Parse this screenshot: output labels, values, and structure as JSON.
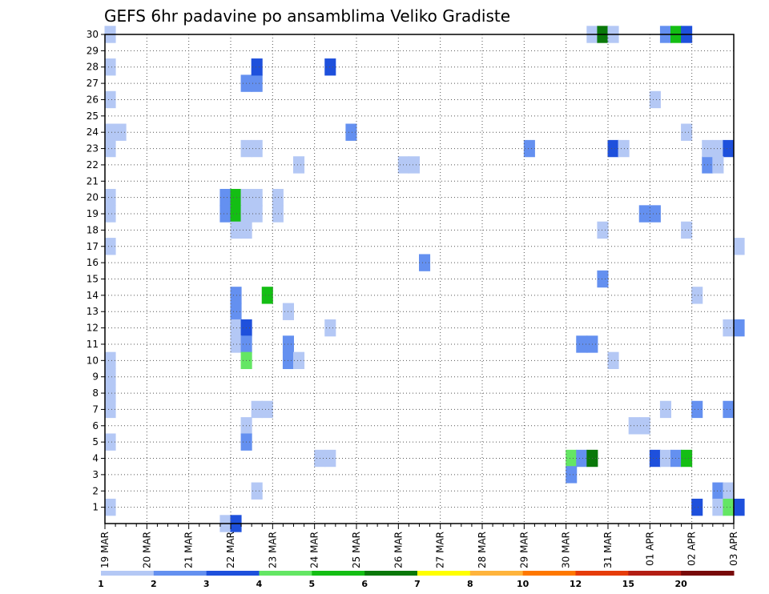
{
  "chart_data": {
    "type": "heatmap",
    "title": "GEFS 6hr padavine po ansamblima Veliko Gradiste",
    "xlabel": "",
    "ylabel": "",
    "x_tick_labels": [
      "19 MAR",
      "20 MAR",
      "21 MAR",
      "22 MAR",
      "23 MAR",
      "24 MAR",
      "25 MAR",
      "26 MAR",
      "27 MAR",
      "28 MAR",
      "29 MAR",
      "30 MAR",
      "31 MAR",
      "01 APR",
      "02 APR",
      "03 APR"
    ],
    "y_tick_labels": [
      "1",
      "2",
      "3",
      "4",
      "5",
      "6",
      "7",
      "8",
      "9",
      "10",
      "11",
      "12",
      "13",
      "14",
      "15",
      "16",
      "17",
      "18",
      "19",
      "20",
      "21",
      "22",
      "23",
      "24",
      "25",
      "26",
      "27",
      "28",
      "29",
      "30"
    ],
    "x_range_steps": [
      0,
      60
    ],
    "y_range": [
      0,
      30
    ],
    "grid": true,
    "colorbar": {
      "labels": [
        "1",
        "2",
        "3",
        "4",
        "5",
        "6",
        "7",
        "8",
        "10",
        "12",
        "15",
        "20"
      ],
      "colors": [
        "#b4c8f5",
        "#6490f0",
        "#1e50dc",
        "#64e664",
        "#14be14",
        "#0a780a",
        "#ffff00",
        "#ffb43c",
        "#ff7800",
        "#e63c0a",
        "#b41e14",
        "#780a0a"
      ]
    },
    "cells": [
      [
        0,
        30,
        1
      ],
      [
        0,
        28,
        1
      ],
      [
        0,
        26,
        1
      ],
      [
        0,
        24,
        1
      ],
      [
        1,
        24,
        1
      ],
      [
        0,
        23,
        1
      ],
      [
        0,
        20,
        1
      ],
      [
        0,
        19,
        1
      ],
      [
        0,
        17,
        1
      ],
      [
        0,
        10,
        1
      ],
      [
        0,
        9,
        1
      ],
      [
        0,
        8,
        1
      ],
      [
        0,
        7,
        1
      ],
      [
        0,
        5,
        1
      ],
      [
        0,
        1,
        1
      ],
      [
        11,
        0,
        1
      ],
      [
        12,
        0,
        3
      ],
      [
        11,
        20,
        2
      ],
      [
        12,
        20,
        5
      ],
      [
        13,
        20,
        1
      ],
      [
        14,
        20,
        1
      ],
      [
        16,
        20,
        1
      ],
      [
        16,
        19,
        1
      ],
      [
        11,
        19,
        2
      ],
      [
        12,
        19,
        5
      ],
      [
        13,
        19,
        1
      ],
      [
        14,
        19,
        1
      ],
      [
        12,
        18,
        1
      ],
      [
        13,
        18,
        1
      ],
      [
        12,
        14,
        2
      ],
      [
        12,
        13,
        2
      ],
      [
        12,
        12,
        1
      ],
      [
        13,
        12,
        3
      ],
      [
        12,
        11,
        1
      ],
      [
        13,
        11,
        2
      ],
      [
        13,
        10,
        4
      ],
      [
        14,
        27,
        2
      ],
      [
        13,
        27,
        2
      ],
      [
        14,
        28,
        3
      ],
      [
        13,
        23,
        1
      ],
      [
        14,
        23,
        1
      ],
      [
        15,
        14,
        5
      ],
      [
        13,
        6,
        1
      ],
      [
        13,
        5,
        2
      ],
      [
        14,
        7,
        1
      ],
      [
        15,
        7,
        1
      ],
      [
        14,
        2,
        1
      ],
      [
        17,
        11,
        2
      ],
      [
        17,
        10,
        2
      ],
      [
        18,
        10,
        1
      ],
      [
        17,
        13,
        1
      ],
      [
        18,
        22,
        1
      ],
      [
        20,
        4,
        1
      ],
      [
        21,
        4,
        1
      ],
      [
        21,
        12,
        1
      ],
      [
        21,
        28,
        3
      ],
      [
        23,
        24,
        2
      ],
      [
        28,
        22,
        1
      ],
      [
        29,
        22,
        1
      ],
      [
        30,
        16,
        2
      ],
      [
        40,
        23,
        2
      ],
      [
        44,
        4,
        4
      ],
      [
        45,
        4,
        2
      ],
      [
        46,
        4,
        6
      ],
      [
        44,
        3,
        2
      ],
      [
        45,
        11,
        2
      ],
      [
        46,
        11,
        2
      ],
      [
        46,
        30,
        1
      ],
      [
        47,
        30,
        6
      ],
      [
        48,
        30,
        1
      ],
      [
        47,
        18,
        1
      ],
      [
        47,
        15,
        2
      ],
      [
        48,
        10,
        1
      ],
      [
        48,
        23,
        3
      ],
      [
        49,
        23,
        1
      ],
      [
        50,
        6,
        1
      ],
      [
        51,
        6,
        1
      ],
      [
        51,
        19,
        2
      ],
      [
        52,
        19,
        2
      ],
      [
        52,
        26,
        1
      ],
      [
        52,
        4,
        3
      ],
      [
        53,
        4,
        1
      ],
      [
        53,
        7,
        1
      ],
      [
        53,
        30,
        2
      ],
      [
        54,
        30,
        5
      ],
      [
        55,
        30,
        3
      ],
      [
        54,
        4,
        2
      ],
      [
        55,
        4,
        5
      ],
      [
        55,
        24,
        1
      ],
      [
        55,
        18,
        1
      ],
      [
        56,
        14,
        1
      ],
      [
        56,
        7,
        2
      ],
      [
        56,
        1,
        3
      ],
      [
        57,
        22,
        2
      ],
      [
        57,
        23,
        1
      ],
      [
        58,
        23,
        1
      ],
      [
        59,
        23,
        3
      ],
      [
        58,
        22,
        1
      ],
      [
        58,
        2,
        2
      ],
      [
        59,
        2,
        1
      ],
      [
        58,
        1,
        1
      ],
      [
        59,
        1,
        4
      ],
      [
        60,
        1,
        3
      ],
      [
        59,
        12,
        1
      ],
      [
        60,
        12,
        2
      ],
      [
        59,
        7,
        2
      ],
      [
        60,
        17,
        1
      ]
    ]
  }
}
